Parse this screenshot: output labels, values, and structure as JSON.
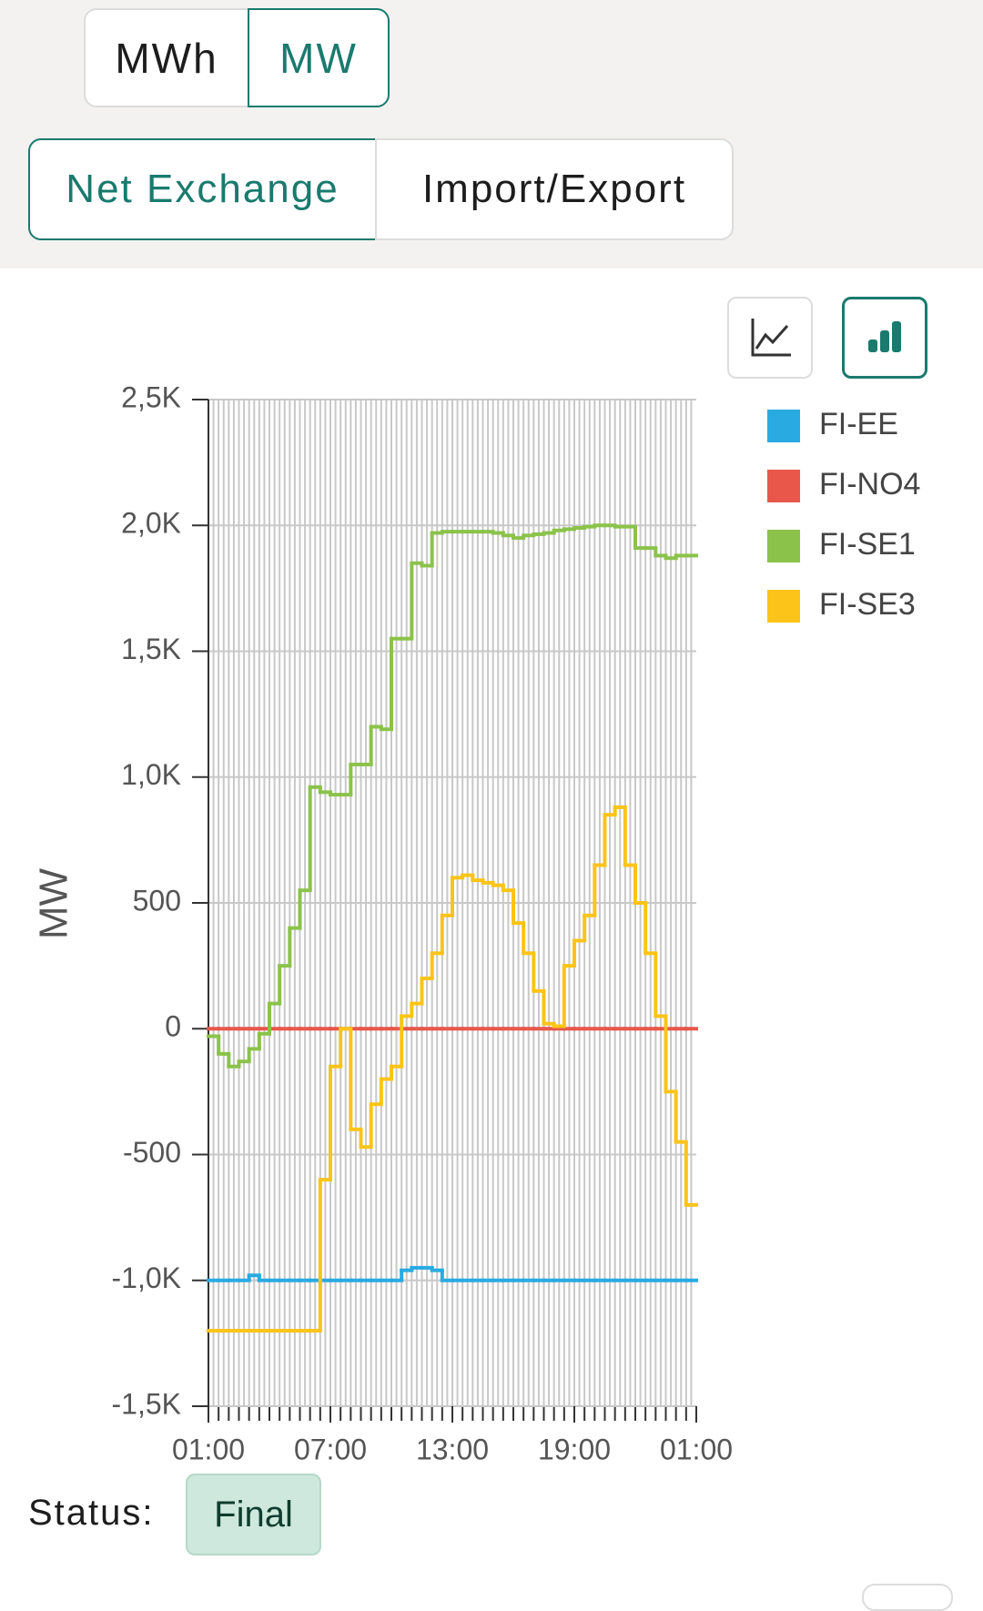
{
  "controls": {
    "units": [
      "MWh",
      "MW"
    ],
    "selected_unit": "MW",
    "views": [
      "Net Exchange",
      "Import/Export"
    ],
    "selected_view": "Net Exchange"
  },
  "chart_data": {
    "type": "line",
    "step": true,
    "y_label": "MW",
    "grid": true,
    "legend": "right",
    "x": [
      1,
      1.5,
      2,
      2.5,
      3,
      3.5,
      4,
      4.5,
      5,
      5.5,
      6,
      6.5,
      7,
      7.5,
      8,
      8.5,
      9,
      9.5,
      10,
      10.5,
      11,
      11.5,
      12,
      12.5,
      13,
      13.5,
      14,
      14.5,
      15,
      15.5,
      16,
      16.5,
      17,
      17.5,
      18,
      18.5,
      19,
      19.5,
      20,
      20.5,
      21,
      21.5,
      22,
      22.5,
      23,
      23.5,
      24,
      24.5
    ],
    "xlim": [
      1,
      25
    ],
    "xticks": [
      {
        "value": 1,
        "label": "01:00"
      },
      {
        "value": 7,
        "label": "07:00"
      },
      {
        "value": 13,
        "label": "13:00"
      },
      {
        "value": 19,
        "label": "19:00"
      },
      {
        "value": 25,
        "label": "01:00"
      }
    ],
    "ylim": [
      -1500,
      2500
    ],
    "yticks": [
      {
        "value": 2500,
        "label": "2,5K"
      },
      {
        "value": 2000,
        "label": "2,0K"
      },
      {
        "value": 1500,
        "label": "1,5K"
      },
      {
        "value": 1000,
        "label": "1,0K"
      },
      500,
      0,
      -500,
      {
        "value": -1000,
        "label": "-1,0K"
      },
      {
        "value": -1500,
        "label": "-1,5K"
      }
    ],
    "series": [
      {
        "name": "FI-EE",
        "color": "#29abe2",
        "values": [
          -1000,
          -1000,
          -1000,
          -1000,
          -980,
          -1000,
          -1000,
          -1000,
          -1000,
          -1000,
          -1000,
          -1000,
          -1000,
          -1000,
          -1000,
          -1000,
          -1000,
          -1000,
          -1000,
          -960,
          -950,
          -950,
          -960,
          -1000,
          -1000,
          -1000,
          -1000,
          -1000,
          -1000,
          -1000,
          -1000,
          -1000,
          -1000,
          -1000,
          -1000,
          -1000,
          -1000,
          -1000,
          -1000,
          -1000,
          -1000,
          -1000,
          -1000,
          -1000,
          -1000,
          -1000,
          -1000,
          -1000
        ]
      },
      {
        "name": "FI-NO4",
        "color": "#e8574a",
        "values": [
          0,
          0,
          0,
          0,
          0,
          0,
          0,
          0,
          0,
          0,
          0,
          0,
          0,
          0,
          0,
          0,
          0,
          0,
          0,
          0,
          0,
          0,
          0,
          0,
          0,
          0,
          0,
          0,
          0,
          0,
          0,
          0,
          0,
          0,
          0,
          0,
          0,
          0,
          0,
          0,
          0,
          0,
          0,
          0,
          0,
          0,
          0,
          0
        ]
      },
      {
        "name": "FI-SE1",
        "color": "#8bc34a",
        "values": [
          -30,
          -100,
          -150,
          -130,
          -80,
          -20,
          100,
          250,
          400,
          550,
          960,
          940,
          930,
          930,
          1050,
          1050,
          1200,
          1190,
          1550,
          1550,
          1850,
          1840,
          1970,
          1975,
          1975,
          1975,
          1975,
          1975,
          1970,
          1960,
          1950,
          1960,
          1965,
          1970,
          1980,
          1985,
          1990,
          1995,
          2000,
          2000,
          1995,
          1995,
          1910,
          1910,
          1880,
          1870,
          1880,
          1880
        ]
      },
      {
        "name": "FI-SE3",
        "color": "#fcc419",
        "values": [
          -1200,
          -1200,
          -1200,
          -1200,
          -1200,
          -1200,
          -1200,
          -1200,
          -1200,
          -1200,
          -1200,
          -600,
          -150,
          0,
          -400,
          -470,
          -300,
          -200,
          -150,
          50,
          100,
          200,
          300,
          450,
          600,
          610,
          590,
          580,
          570,
          550,
          420,
          300,
          150,
          20,
          10,
          250,
          350,
          450,
          650,
          850,
          880,
          650,
          500,
          300,
          50,
          -250,
          -450,
          -700
        ]
      }
    ]
  },
  "status": {
    "label": "Status:",
    "value": "Final"
  }
}
